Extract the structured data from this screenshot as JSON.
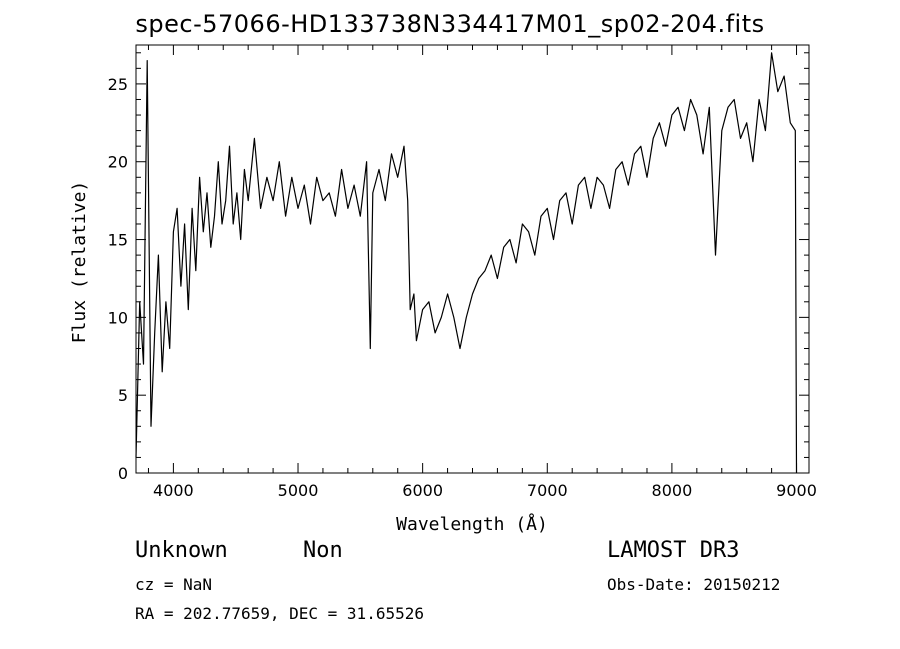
{
  "chart_data": {
    "type": "line",
    "title": "spec-57066-HD133738N334417M01_sp02-204.fits",
    "xlabel": "Wavelength (Å)",
    "ylabel": "Flux (relative)",
    "xlim": [
      3700,
      9100
    ],
    "ylim": [
      0,
      27.5
    ],
    "xticks": [
      4000,
      5000,
      6000,
      7000,
      8000,
      9000
    ],
    "yticks": [
      0,
      5,
      10,
      15,
      20,
      25
    ],
    "grid": false,
    "series": [
      {
        "x": [
          3700,
          3730,
          3760,
          3790,
          3820,
          3850,
          3880,
          3910,
          3940,
          3970,
          4000,
          4030,
          4060,
          4090,
          4120,
          4150,
          4180,
          4210,
          4240,
          4270,
          4300,
          4330,
          4360,
          4390,
          4420,
          4450,
          4480,
          4510,
          4540,
          4570,
          4600,
          4650,
          4700,
          4750,
          4800,
          4850,
          4900,
          4950,
          5000,
          5050,
          5100,
          5150,
          5200,
          5250,
          5300,
          5350,
          5400,
          5450,
          5500,
          5550,
          5580,
          5600,
          5650,
          5700,
          5750,
          5800,
          5850,
          5880,
          5900,
          5930,
          5950,
          6000,
          6050,
          6100,
          6150,
          6200,
          6250,
          6300,
          6350,
          6400,
          6450,
          6500,
          6550,
          6600,
          6650,
          6700,
          6750,
          6800,
          6850,
          6900,
          6950,
          7000,
          7050,
          7100,
          7150,
          7200,
          7250,
          7300,
          7350,
          7400,
          7450,
          7500,
          7550,
          7600,
          7650,
          7700,
          7750,
          7800,
          7850,
          7900,
          7950,
          8000,
          8050,
          8100,
          8150,
          8200,
          8250,
          8300,
          8350,
          8400,
          8450,
          8500,
          8550,
          8600,
          8650,
          8700,
          8750,
          8800,
          8850,
          8900,
          8950,
          8990,
          9000
        ],
        "y": [
          1.0,
          11.0,
          7.0,
          26.5,
          3.0,
          9.0,
          14.0,
          6.5,
          11.0,
          8.0,
          15.5,
          17.0,
          12.0,
          16.0,
          10.5,
          17.0,
          13.0,
          19.0,
          15.5,
          18.0,
          14.5,
          16.5,
          20.0,
          16.0,
          17.5,
          21.0,
          16.0,
          18.0,
          15.0,
          19.5,
          17.5,
          21.5,
          17.0,
          19.0,
          17.5,
          20.0,
          16.5,
          19.0,
          17.0,
          18.5,
          16.0,
          19.0,
          17.5,
          18.0,
          16.5,
          19.5,
          17.0,
          18.5,
          16.5,
          20.0,
          8.0,
          18.0,
          19.5,
          17.5,
          20.5,
          19.0,
          21.0,
          17.5,
          10.5,
          11.5,
          8.5,
          10.5,
          11.0,
          9.0,
          10.0,
          11.5,
          10.0,
          8.0,
          10.0,
          11.5,
          12.5,
          13.0,
          14.0,
          12.5,
          14.5,
          15.0,
          13.5,
          16.0,
          15.5,
          14.0,
          16.5,
          17.0,
          15.0,
          17.5,
          18.0,
          16.0,
          18.5,
          19.0,
          17.0,
          19.0,
          18.5,
          17.0,
          19.5,
          20.0,
          18.5,
          20.5,
          21.0,
          19.0,
          21.5,
          22.5,
          21.0,
          23.0,
          23.5,
          22.0,
          24.0,
          23.0,
          20.5,
          23.5,
          14.0,
          22.0,
          23.5,
          24.0,
          21.5,
          22.5,
          20.0,
          24.0,
          22.0,
          27.0,
          24.5,
          25.5,
          22.5,
          22.0,
          0.0
        ]
      }
    ]
  },
  "footer": {
    "obj_type": "Unknown",
    "obj_class": "Non",
    "survey": "LAMOST DR3",
    "cz": "cz = NaN",
    "obs_date": "Obs-Date: 20150212",
    "radec": "RA = 202.77659, DEC =  31.65526"
  }
}
